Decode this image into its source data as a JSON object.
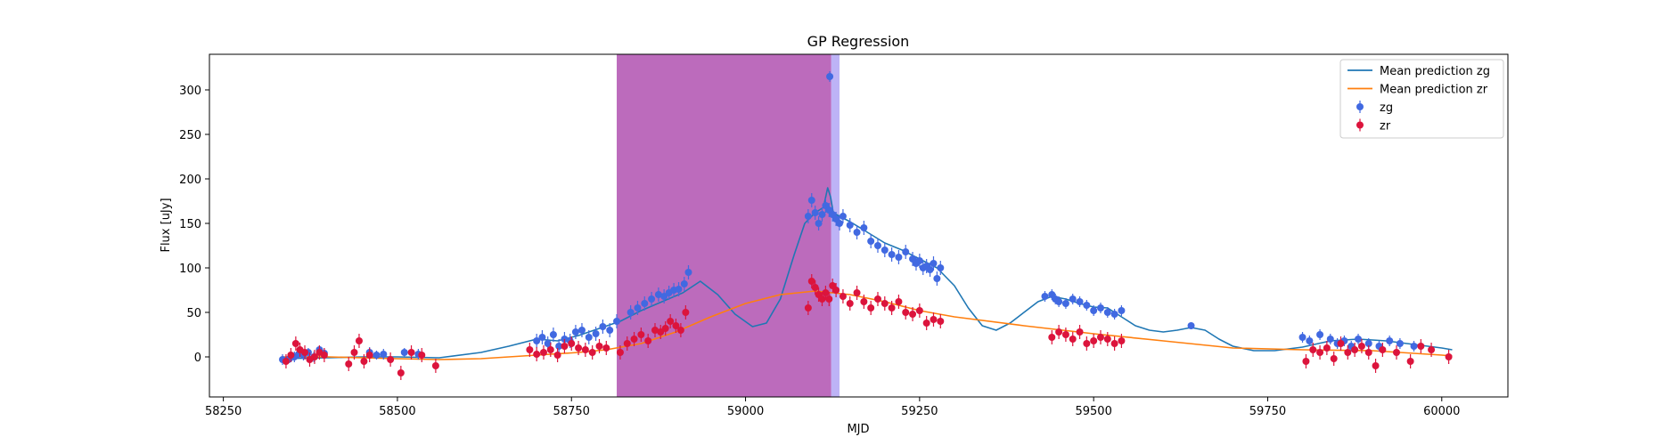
{
  "chart_data": {
    "type": "scatter",
    "title": "GP Regression",
    "xlabel": "MJD",
    "ylabel": "Flux [uJy]",
    "xlim": [
      58230,
      60095
    ],
    "ylim": [
      -45,
      340
    ],
    "xticks": [
      58250,
      58500,
      58750,
      59000,
      59250,
      59500,
      59750,
      60000
    ],
    "yticks": [
      0,
      50,
      100,
      150,
      200,
      250,
      300
    ],
    "grid": false,
    "legend_position": "top-right",
    "legend": [
      {
        "label": "Mean prediction zg",
        "kind": "line",
        "color": "#1f77b4"
      },
      {
        "label": "Mean prediction zr",
        "kind": "line",
        "color": "#ff7f0e"
      },
      {
        "label": "zg",
        "kind": "errorbar",
        "color": "#4169e1"
      },
      {
        "label": "zr",
        "kind": "errorbar",
        "color": "#dc143c"
      }
    ],
    "shaded_regions": [
      {
        "x0": 58815,
        "x1": 59123,
        "color": "#8b008b",
        "alpha": 0.58
      },
      {
        "x0": 59123,
        "x1": 59135,
        "color": "#7b68ee",
        "alpha": 0.5
      }
    ],
    "series": [
      {
        "name": "Mean prediction zg",
        "kind": "line",
        "color": "#1f77b4",
        "x": [
          58335,
          58400,
          58450,
          58500,
          58560,
          58620,
          58660,
          58700,
          58730,
          58760,
          58790,
          58820,
          58850,
          58880,
          58910,
          58935,
          58960,
          58985,
          59010,
          59030,
          59050,
          59070,
          59085,
          59100,
          59112,
          59118,
          59122,
          59126,
          59135,
          59150,
          59175,
          59200,
          59225,
          59250,
          59275,
          59300,
          59320,
          59340,
          59360,
          59380,
          59400,
          59420,
          59440,
          59460,
          59480,
          59500,
          59520,
          59540,
          59560,
          59580,
          59600,
          59620,
          59640,
          59660,
          59680,
          59700,
          59730,
          59760,
          59800,
          59840,
          59880,
          59920,
          59960,
          60000,
          60015
        ],
        "y": [
          -2,
          -1,
          0,
          0,
          -1,
          5,
          12,
          20,
          18,
          24,
          32,
          40,
          52,
          62,
          72,
          85,
          70,
          48,
          34,
          38,
          65,
          115,
          150,
          162,
          168,
          190,
          180,
          162,
          158,
          152,
          140,
          128,
          120,
          110,
          100,
          80,
          55,
          35,
          30,
          38,
          50,
          62,
          68,
          65,
          60,
          56,
          55,
          45,
          35,
          30,
          28,
          30,
          33,
          30,
          20,
          12,
          7,
          7,
          11,
          18,
          20,
          18,
          14,
          10,
          8
        ]
      },
      {
        "name": "Mean prediction zr",
        "kind": "line",
        "color": "#ff7f0e",
        "x": [
          58335,
          58400,
          58450,
          58500,
          58560,
          58620,
          58680,
          58720,
          58760,
          58800,
          58850,
          58900,
          58950,
          59000,
          59050,
          59100,
          59150,
          59200,
          59250,
          59300,
          59400,
          59500,
          59600,
          59700,
          59800,
          59900,
          60000,
          60015
        ],
        "y": [
          0,
          0,
          -1,
          -2,
          -3,
          -2,
          1,
          3,
          5,
          8,
          15,
          28,
          45,
          60,
          70,
          74,
          70,
          62,
          52,
          45,
          35,
          26,
          18,
          10,
          8,
          7,
          2,
          1
        ]
      },
      {
        "name": "zg",
        "kind": "scatter",
        "color": "#4169e1",
        "x": [
          58335,
          58345,
          58352,
          58358,
          58365,
          58372,
          58380,
          58388,
          58395,
          58460,
          58470,
          58480,
          58510,
          58530,
          58700,
          58708,
          58716,
          58724,
          58732,
          58740,
          58748,
          58756,
          58765,
          58775,
          58785,
          58795,
          58805,
          58815,
          58835,
          58845,
          58855,
          58865,
          58875,
          58883,
          58890,
          58897,
          58904,
          58912,
          58918,
          59090,
          59095,
          59100,
          59105,
          59110,
          59115,
          59120,
          59121,
          59125,
          59130,
          59135,
          59140,
          59150,
          59160,
          59170,
          59180,
          59190,
          59200,
          59210,
          59220,
          59230,
          59240,
          59245,
          59250,
          59255,
          59260,
          59265,
          59270,
          59275,
          59280,
          59430,
          59440,
          59445,
          59450,
          59460,
          59470,
          59480,
          59490,
          59500,
          59510,
          59520,
          59530,
          59540,
          59640,
          59800,
          59810,
          59825,
          59840,
          59850,
          59860,
          59870,
          59880,
          59895,
          59910,
          59925,
          59940,
          59960
        ],
        "y": [
          -3,
          -2,
          0,
          3,
          2,
          5,
          0,
          8,
          4,
          5,
          2,
          3,
          5,
          3,
          18,
          22,
          15,
          25,
          12,
          20,
          18,
          28,
          30,
          22,
          26,
          34,
          30,
          40,
          50,
          55,
          60,
          65,
          70,
          68,
          72,
          75,
          76,
          82,
          95,
          158,
          176,
          162,
          150,
          160,
          170,
          165,
          315,
          160,
          155,
          150,
          158,
          148,
          140,
          145,
          130,
          125,
          120,
          115,
          112,
          118,
          110,
          105,
          108,
          100,
          102,
          98,
          105,
          88,
          100,
          68,
          70,
          65,
          62,
          60,
          65,
          62,
          58,
          52,
          55,
          50,
          48,
          52,
          35,
          22,
          18,
          25,
          20,
          15,
          18,
          12,
          20,
          15,
          12,
          18,
          15,
          12
        ],
        "err": [
          6,
          5,
          6,
          5,
          6,
          5,
          6,
          5,
          6,
          6,
          5,
          6,
          5,
          6,
          8,
          8,
          8,
          8,
          8,
          8,
          8,
          8,
          8,
          8,
          8,
          8,
          8,
          8,
          8,
          8,
          8,
          8,
          8,
          8,
          8,
          8,
          8,
          8,
          8,
          8,
          8,
          8,
          8,
          8,
          8,
          8,
          6,
          8,
          8,
          8,
          8,
          8,
          8,
          8,
          8,
          8,
          8,
          8,
          8,
          8,
          8,
          8,
          8,
          8,
          8,
          8,
          8,
          8,
          8,
          6,
          6,
          6,
          6,
          6,
          6,
          6,
          6,
          6,
          6,
          6,
          6,
          6,
          4,
          6,
          6,
          6,
          6,
          6,
          6,
          6,
          6,
          6,
          6,
          6,
          6,
          6
        ]
      },
      {
        "name": "zr",
        "kind": "scatter",
        "color": "#dc143c",
        "x": [
          58340,
          58347,
          58354,
          58360,
          58367,
          58374,
          58381,
          58388,
          58395,
          58430,
          58438,
          58445,
          58452,
          58460,
          58490,
          58505,
          58520,
          58535,
          58555,
          58690,
          58700,
          58710,
          58720,
          58730,
          58740,
          58750,
          58760,
          58770,
          58780,
          58790,
          58800,
          58820,
          58830,
          58840,
          58850,
          58860,
          58870,
          58878,
          58885,
          58892,
          58900,
          58907,
          58914,
          59090,
          59095,
          59100,
          59105,
          59110,
          59115,
          59120,
          59125,
          59130,
          59140,
          59150,
          59160,
          59170,
          59180,
          59190,
          59200,
          59210,
          59220,
          59230,
          59240,
          59250,
          59260,
          59270,
          59280,
          59440,
          59450,
          59460,
          59470,
          59480,
          59490,
          59500,
          59510,
          59520,
          59530,
          59540,
          59805,
          59815,
          59825,
          59835,
          59845,
          59855,
          59865,
          59875,
          59885,
          59895,
          59905,
          59915,
          59935,
          59955,
          59970,
          59985,
          60010
        ],
        "y": [
          -5,
          2,
          15,
          8,
          5,
          -3,
          0,
          5,
          2,
          -8,
          5,
          18,
          -5,
          2,
          -3,
          -18,
          5,
          2,
          -10,
          8,
          3,
          5,
          8,
          2,
          12,
          15,
          10,
          8,
          5,
          12,
          10,
          5,
          15,
          20,
          25,
          18,
          30,
          28,
          32,
          40,
          35,
          30,
          50,
          55,
          85,
          78,
          70,
          65,
          72,
          65,
          80,
          75,
          68,
          60,
          72,
          62,
          55,
          65,
          60,
          55,
          62,
          50,
          48,
          52,
          38,
          42,
          40,
          22,
          28,
          25,
          20,
          28,
          15,
          18,
          22,
          20,
          15,
          18,
          -5,
          8,
          5,
          10,
          -2,
          15,
          5,
          8,
          12,
          5,
          -10,
          8,
          5,
          -5,
          12,
          8,
          0
        ],
        "err": [
          8,
          8,
          8,
          8,
          8,
          8,
          8,
          8,
          8,
          8,
          8,
          8,
          8,
          8,
          8,
          8,
          8,
          8,
          8,
          8,
          8,
          8,
          8,
          8,
          8,
          8,
          8,
          8,
          8,
          8,
          8,
          8,
          8,
          8,
          8,
          8,
          8,
          8,
          8,
          8,
          8,
          8,
          8,
          8,
          8,
          8,
          8,
          8,
          8,
          8,
          8,
          8,
          8,
          8,
          8,
          8,
          8,
          8,
          8,
          8,
          8,
          8,
          8,
          8,
          8,
          8,
          8,
          8,
          8,
          8,
          8,
          8,
          8,
          8,
          8,
          8,
          8,
          8,
          8,
          8,
          8,
          8,
          8,
          8,
          8,
          8,
          8,
          8,
          8,
          8,
          8,
          8,
          8,
          8,
          8
        ]
      }
    ]
  }
}
